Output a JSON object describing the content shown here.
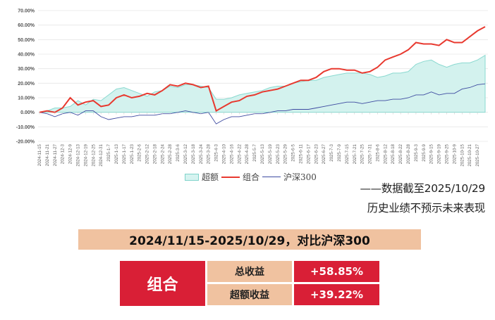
{
  "chart_data": {
    "type": "line",
    "title": "",
    "xlabel": "",
    "ylabel": "",
    "ylim": [
      -20,
      70
    ],
    "yticks": [
      "70.00%",
      "60.00%",
      "50.00%",
      "40.00%",
      "30.00%",
      "20.00%",
      "10.00%",
      "0.00%",
      "-10.00%",
      "-20.00%"
    ],
    "grid": true,
    "legend_position": "bottom",
    "categories": [
      "2024-11-15",
      "2024-11-21",
      "2024-11-27",
      "2024-12-3",
      "2024-12-9",
      "2024-12-13",
      "2024-12-19",
      "2024-12-25",
      "2024-12-31",
      "2025-1-7",
      "2025-1-13",
      "2025-1-17",
      "2025-1-23",
      "2025-2-6",
      "2025-2-12",
      "2025-2-18",
      "2025-2-24",
      "2025-2-28",
      "2025-3-6",
      "2025-3-12",
      "2025-3-18",
      "2025-3-24",
      "2025-3-28",
      "2025-4-3",
      "2025-4-10",
      "2025-4-16",
      "2025-4-22",
      "2025-4-28",
      "2025-5-7",
      "2025-5-13",
      "2025-5-19",
      "2025-5-23",
      "2025-5-29",
      "2025-6-5",
      "2025-6-11",
      "2025-6-17",
      "2025-6-23",
      "2025-6-27",
      "2025-7-3",
      "2025-7-9",
      "2025-7-15",
      "2025-7-21",
      "2025-7-25",
      "2025-7-31",
      "2025-8-6",
      "2025-8-12",
      "2025-8-18",
      "2025-8-22",
      "2025-8-28",
      "2025-9-3",
      "2025-9-9",
      "2025-9-15",
      "2025-9-19",
      "2025-9-25",
      "2025-10-9",
      "2025-10-15",
      "2025-10-21",
      "2025-10-27"
    ],
    "series": [
      {
        "name": "超额",
        "type": "area",
        "color": "#d3f2ee",
        "stroke": "#8ad9d0",
        "values": [
          0,
          1,
          3,
          3,
          4,
          8,
          5,
          9,
          8,
          12,
          16,
          17,
          15,
          13,
          11,
          14,
          15,
          18,
          17,
          19,
          19,
          18,
          17,
          9,
          9,
          10,
          12,
          13,
          14,
          15,
          17,
          18,
          18,
          20,
          21,
          22,
          22,
          24,
          25,
          26,
          27,
          27,
          27,
          26,
          24,
          25,
          27,
          27,
          28,
          33,
          35,
          36,
          33,
          31,
          33,
          34,
          34,
          36
        ]
      },
      {
        "name": "组合",
        "type": "line",
        "color": "#e8392f",
        "values": [
          0,
          1,
          0,
          3,
          10,
          5,
          7,
          8,
          4,
          5,
          10,
          12,
          10,
          11,
          13,
          12,
          15,
          19,
          18,
          20,
          19,
          17,
          18,
          1,
          4,
          7,
          8,
          11,
          12,
          14,
          15,
          16,
          18,
          20,
          22,
          22,
          24,
          28,
          30,
          30,
          29,
          29,
          27,
          28,
          31,
          36,
          38,
          40,
          43,
          48,
          47,
          47,
          46,
          50,
          48,
          48,
          52,
          56
        ]
      },
      {
        "name": "沪深300",
        "type": "line",
        "color": "#3d4aa0",
        "values": [
          0,
          -1,
          -3,
          -1,
          0,
          -2,
          1,
          1,
          -3,
          -5,
          -4,
          -3,
          -3,
          -2,
          -2,
          -2,
          -1,
          -1,
          0,
          1,
          0,
          -1,
          0,
          -8,
          -5,
          -3,
          -3,
          -2,
          -1,
          -1,
          0,
          1,
          1,
          2,
          2,
          2,
          3,
          4,
          5,
          6,
          7,
          7,
          6,
          7,
          8,
          8,
          9,
          9,
          10,
          12,
          12,
          14,
          12,
          13,
          13,
          16,
          17,
          19
        ]
      }
    ],
    "end_values": {
      "组合": 58.85,
      "超额": 39.22,
      "沪深300": 19.6
    }
  },
  "legend": {
    "items": [
      {
        "label": "超额",
        "kind": "area"
      },
      {
        "label": "组合",
        "kind": "line"
      },
      {
        "label": "沪深300",
        "kind": "line"
      }
    ]
  },
  "notes": {
    "cutoff": "——数据截至2025/10/29",
    "disclaimer": "历史业绩不预示未来表现"
  },
  "banner": {
    "text": "2024/11/15-2025/10/29，对比沪深300"
  },
  "summary_table": {
    "name": "组合",
    "rows": [
      {
        "label": "总收益",
        "value": "+58.85%"
      },
      {
        "label": "超额收益",
        "value": "+39.22%"
      }
    ]
  },
  "colors": {
    "portfolio": "#e8392f",
    "benchmark": "#3d4aa0",
    "excess_fill": "#d3f2ee",
    "excess_stroke": "#8ad9d0",
    "accent_red": "#d91f36",
    "accent_peach": "#f0c2a0"
  }
}
